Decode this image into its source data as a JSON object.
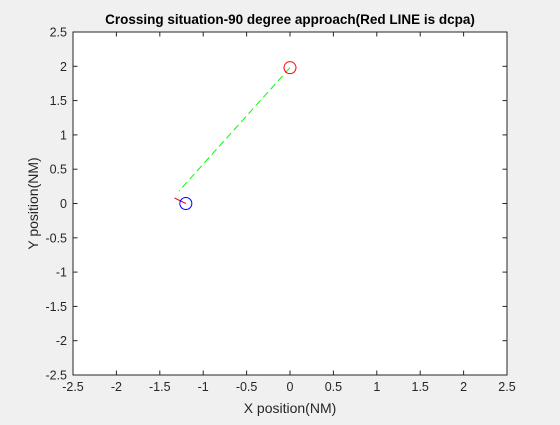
{
  "chart_data": {
    "type": "line",
    "title": "Crossing situation-90 degree approach(Red LINE is dcpa)",
    "xlabel": "X position(NM)",
    "ylabel": "Y position(NM)",
    "xlim": [
      -2.5,
      2.5
    ],
    "ylim": [
      -2.5,
      2.5
    ],
    "x_ticks": [
      -2.5,
      -2,
      -1.5,
      -1,
      -0.5,
      0,
      0.5,
      1,
      1.5,
      2,
      2.5
    ],
    "y_ticks": [
      -2.5,
      -2,
      -1.5,
      -1,
      -0.5,
      0,
      0.5,
      1,
      1.5,
      2,
      2.5
    ],
    "x_tick_labels": [
      "-2.5",
      "-2",
      "-1.5",
      "-1",
      "-0.5",
      "0",
      "0.5",
      "1",
      "1.5",
      "2",
      "2.5"
    ],
    "y_tick_labels": [
      "-2.5",
      "-2",
      "-1.5",
      "-1",
      "-0.5",
      "0",
      "0.5",
      "1",
      "1.5",
      "2",
      "2.5"
    ],
    "grid": false,
    "series": [
      {
        "style": "dashed",
        "color": "#00ff00",
        "x": [
          0.0,
          -1.28
        ],
        "y": [
          1.98,
          0.18
        ]
      },
      {
        "style": "solid",
        "color": "#ff0000",
        "x": [
          -1.33,
          -1.2
        ],
        "y": [
          0.08,
          0.0
        ]
      }
    ],
    "markers": [
      {
        "shape": "circle",
        "color": "#ff0000",
        "x": 0.0,
        "y": 1.98
      },
      {
        "shape": "circle",
        "color": "#0000ff",
        "x": -1.2,
        "y": 0.0
      }
    ]
  }
}
